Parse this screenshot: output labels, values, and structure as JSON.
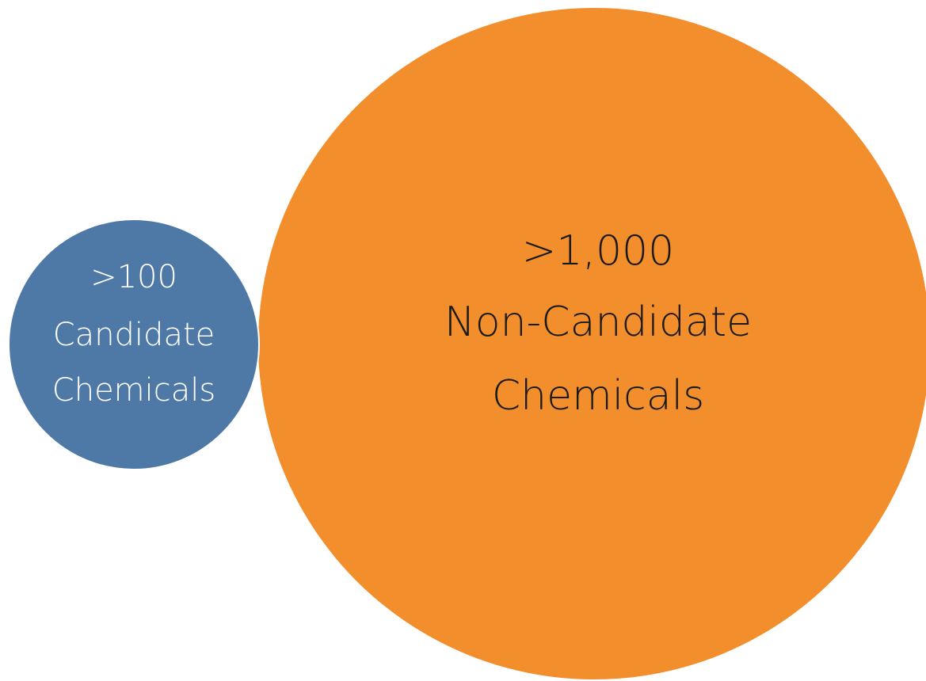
{
  "nodes": [
    {
      "lines": [
        ">100",
        "Candidate",
        "Chemicals"
      ],
      "color": "#4e79a7",
      "text_color": "#ffffff"
    },
    {
      "lines": [
        ">1,000",
        "Non-Candidate",
        "Chemicals"
      ],
      "color": "#f28e2b",
      "text_color": "#1a1a1a"
    }
  ]
}
